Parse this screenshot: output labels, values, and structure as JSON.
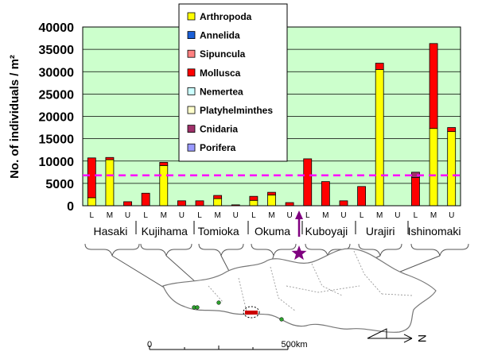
{
  "chart_data": {
    "type": "bar",
    "stacked": true,
    "ylabel": "No. of individuals / m²",
    "ylim": [
      0,
      40000
    ],
    "yticks": [
      0,
      5000,
      10000,
      15000,
      20000,
      25000,
      30000,
      35000,
      40000
    ],
    "reference_line": 6800,
    "sites": [
      "Hasaki",
      "Kujihama",
      "Tomioka",
      "Okuma",
      "Kuboyaji",
      "Urajiri",
      "Ishinomaki"
    ],
    "levels": [
      "L",
      "M",
      "U"
    ],
    "series": [
      {
        "name": "Arthropoda",
        "color": "#ffff00",
        "values": [
          1800,
          10300,
          0,
          0,
          9000,
          0,
          0,
          1600,
          0,
          1200,
          2400,
          0,
          0,
          0,
          0,
          0,
          30500,
          0,
          0,
          17300,
          16600
        ]
      },
      {
        "name": "Annelida",
        "color": "#1a5fd6",
        "values": [
          0,
          0,
          0,
          0,
          0,
          0,
          0,
          0,
          0,
          0,
          0,
          0,
          0,
          0,
          0,
          0,
          0,
          0,
          0,
          0,
          0
        ]
      },
      {
        "name": "Sipuncula",
        "color": "#ff8080",
        "values": [
          0,
          0,
          0,
          0,
          0,
          0,
          0,
          0,
          0,
          0,
          0,
          0,
          0,
          0,
          0,
          0,
          0,
          0,
          0,
          0,
          0
        ]
      },
      {
        "name": "Mollusca",
        "color": "#ff0000",
        "values": [
          8900,
          500,
          900,
          2800,
          700,
          1100,
          1100,
          700,
          200,
          900,
          600,
          700,
          10500,
          5400,
          1100,
          4300,
          1400,
          0,
          6300,
          19000,
          900
        ]
      },
      {
        "name": "Nemertea",
        "color": "#ccffff",
        "values": [
          0,
          0,
          0,
          0,
          0,
          0,
          0,
          0,
          0,
          0,
          0,
          0,
          0,
          0,
          0,
          0,
          0,
          0,
          0,
          0,
          0
        ]
      },
      {
        "name": "Platyhelminthes",
        "color": "#ffffcc",
        "values": [
          0,
          0,
          0,
          0,
          0,
          0,
          0,
          0,
          0,
          0,
          0,
          0,
          0,
          0,
          0,
          0,
          0,
          0,
          0,
          0,
          0
        ]
      },
      {
        "name": "Cnidaria",
        "color": "#a0306a",
        "values": [
          0,
          0,
          0,
          0,
          0,
          0,
          0,
          0,
          0,
          0,
          0,
          0,
          0,
          0,
          0,
          0,
          0,
          0,
          1200,
          0,
          0
        ]
      },
      {
        "name": "Porifera",
        "color": "#9999ff",
        "values": [
          0,
          0,
          0,
          0,
          0,
          0,
          0,
          0,
          0,
          0,
          0,
          0,
          0,
          0,
          0,
          0,
          0,
          0,
          0,
          0,
          0
        ]
      }
    ],
    "colors": {
      "plot_bg": "#ccffcc",
      "grid": "#000000",
      "reference_line": "#ff00ff",
      "arrow": "#800080",
      "star": "#800080",
      "map_coast": "#666666",
      "map_site": "#2ea02e"
    },
    "map": {
      "scale_start": "0",
      "scale_end": "500km",
      "north": "N"
    }
  }
}
